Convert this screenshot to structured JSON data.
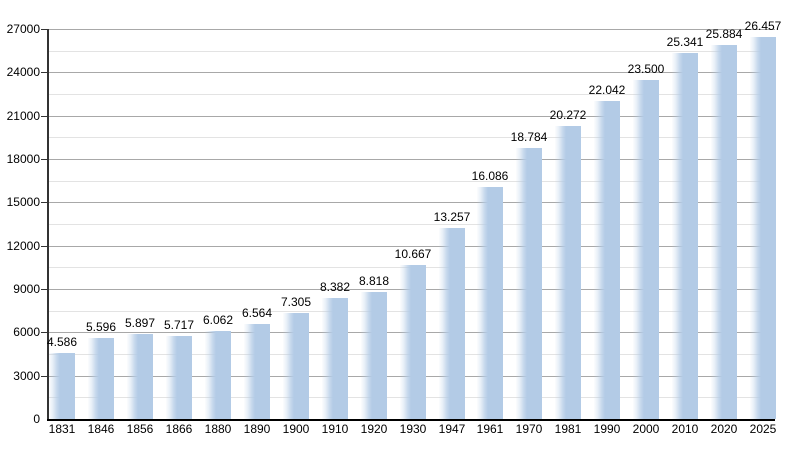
{
  "chart_data": {
    "type": "bar",
    "title": "",
    "xlabel": "",
    "ylabel": "",
    "categories": [
      "1831",
      "1846",
      "1856",
      "1866",
      "1880",
      "1890",
      "1900",
      "1910",
      "1920",
      "1930",
      "1947",
      "1961",
      "1970",
      "1981",
      "1990",
      "2000",
      "2010",
      "2020",
      "2025"
    ],
    "values": [
      4586,
      5596,
      5897,
      5717,
      6062,
      6564,
      7305,
      8382,
      8818,
      10667,
      13257,
      16086,
      18784,
      20272,
      22042,
      23500,
      25341,
      25884,
      26457
    ],
    "value_labels": [
      "4.586",
      "5.596",
      "5.897",
      "5.717",
      "6.062",
      "6.564",
      "7.305",
      "8.382",
      "8.818",
      "10.667",
      "13.257",
      "16.086",
      "18.784",
      "20.272",
      "22.042",
      "23.500",
      "25.341",
      "25.884",
      "26.457"
    ],
    "ylim": [
      0,
      27000
    ],
    "y_ticks": [
      0,
      3000,
      6000,
      9000,
      12000,
      15000,
      18000,
      21000,
      24000,
      27000
    ],
    "y_major_step": 3000,
    "y_minor_step": 1500,
    "grid": "horizontal-major-and-minor",
    "legend": "none",
    "colors": {
      "bar_fill": "#b3cbe6",
      "bar_edge_fade": "#ffffff",
      "major_gridline": "#a8a8a8",
      "minor_gridline": "#e3e3e3",
      "axis": "#000000",
      "text": "#000000",
      "background": "#ffffff"
    }
  }
}
